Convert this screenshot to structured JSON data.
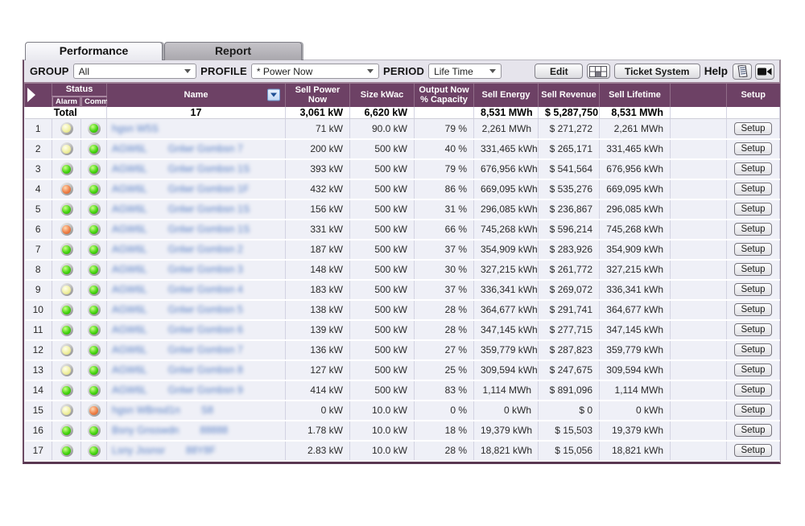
{
  "tabs": {
    "performance": "Performance",
    "report": "Report"
  },
  "toolbar": {
    "group_label": "GROUP",
    "group_value": "All",
    "profile_label": "PROFILE",
    "profile_value": "* Power Now",
    "period_label": "PERIOD",
    "period_value": "Life Time",
    "edit_button": "Edit",
    "grid_button_icon": "table-grid-icon",
    "ticket_button": "Ticket System",
    "help_label": "Help",
    "help_doc_icon": "document-icon",
    "help_video_icon": "video-camera-icon"
  },
  "table": {
    "headers": {
      "status": "Status",
      "alarm": "Alarm",
      "comm": "Comm.",
      "name": "Name",
      "sell_power": "Sell Power Now",
      "size": "Size kWac",
      "output": "Output Now % Capacity",
      "sell_energy": "Sell Energy",
      "sell_revenue": "Sell Revenue",
      "sell_lifetime": "Sell Lifetime",
      "blank": "",
      "setup": "Setup"
    },
    "setup_label": "Setup",
    "total": {
      "label": "Total",
      "count": "17",
      "sell_power": "3,061 kW",
      "size": "6,620 kW",
      "output": "",
      "sell_energy": "8,531 MWh",
      "sell_revenue": "$ 5,287,750",
      "sell_lifetime": "8,531 MWh"
    },
    "rows": [
      {
        "num": "1",
        "alarm": "yellow",
        "comm": "green",
        "name_redacted": [
          "hgsn W5S",
          ""
        ],
        "sell_power": "71 kW",
        "size": "90.0 kW",
        "output": "79 %",
        "sell_energy": "2,261 MWh",
        "sell_revenue": "$ 271,272",
        "sell_lifetime": "2,261 MWh"
      },
      {
        "num": "2",
        "alarm": "yellow",
        "comm": "green",
        "name_redacted": [
          "AGW6L",
          "Gnlwr Gsmbsn 7"
        ],
        "sell_power": "200 kW",
        "size": "500 kW",
        "output": "40 %",
        "sell_energy": "331,465 kWh",
        "sell_revenue": "$ 265,171",
        "sell_lifetime": "331,465 kWh"
      },
      {
        "num": "3",
        "alarm": "green",
        "comm": "green",
        "name_redacted": [
          "AGW6L",
          "Gnlwr Gsmbsn 1S"
        ],
        "sell_power": "393 kW",
        "size": "500 kW",
        "output": "79 %",
        "sell_energy": "676,956 kWh",
        "sell_revenue": "$ 541,564",
        "sell_lifetime": "676,956 kWh"
      },
      {
        "num": "4",
        "alarm": "orange",
        "comm": "green",
        "name_redacted": [
          "AGW6L",
          "Gnlwr Gsmbsn 1F"
        ],
        "sell_power": "432 kW",
        "size": "500 kW",
        "output": "86 %",
        "sell_energy": "669,095 kWh",
        "sell_revenue": "$ 535,276",
        "sell_lifetime": "669,095 kWh"
      },
      {
        "num": "5",
        "alarm": "green",
        "comm": "green",
        "name_redacted": [
          "AGW6L",
          "Gnlwr Gsmbsn 1S"
        ],
        "sell_power": "156 kW",
        "size": "500 kW",
        "output": "31 %",
        "sell_energy": "296,085 kWh",
        "sell_revenue": "$ 236,867",
        "sell_lifetime": "296,085 kWh"
      },
      {
        "num": "6",
        "alarm": "orange",
        "comm": "green",
        "name_redacted": [
          "AGW6L",
          "Gnlwr Gsmbsn 1S"
        ],
        "sell_power": "331 kW",
        "size": "500 kW",
        "output": "66 %",
        "sell_energy": "745,268 kWh",
        "sell_revenue": "$ 596,214",
        "sell_lifetime": "745,268 kWh"
      },
      {
        "num": "7",
        "alarm": "green",
        "comm": "green",
        "name_redacted": [
          "AGW6L",
          "Gnlwr Gsmbsn 2"
        ],
        "sell_power": "187 kW",
        "size": "500 kW",
        "output": "37 %",
        "sell_energy": "354,909 kWh",
        "sell_revenue": "$ 283,926",
        "sell_lifetime": "354,909 kWh"
      },
      {
        "num": "8",
        "alarm": "green",
        "comm": "green",
        "name_redacted": [
          "AGW6L",
          "Gnlwr Gsmbsn 3"
        ],
        "sell_power": "148 kW",
        "size": "500 kW",
        "output": "30 %",
        "sell_energy": "327,215 kWh",
        "sell_revenue": "$ 261,772",
        "sell_lifetime": "327,215 kWh"
      },
      {
        "num": "9",
        "alarm": "yellow",
        "comm": "green",
        "name_redacted": [
          "AGW6L",
          "Gnlwr Gsmbsn 4"
        ],
        "sell_power": "183 kW",
        "size": "500 kW",
        "output": "37 %",
        "sell_energy": "336,341 kWh",
        "sell_revenue": "$ 269,072",
        "sell_lifetime": "336,341 kWh"
      },
      {
        "num": "10",
        "alarm": "green",
        "comm": "green",
        "name_redacted": [
          "AGW6L",
          "Gnlwr Gsmbsn 5"
        ],
        "sell_power": "138 kW",
        "size": "500 kW",
        "output": "28 %",
        "sell_energy": "364,677 kWh",
        "sell_revenue": "$ 291,741",
        "sell_lifetime": "364,677 kWh"
      },
      {
        "num": "11",
        "alarm": "green",
        "comm": "green",
        "name_redacted": [
          "AGW6L",
          "Gnlwr Gsmbsn 6"
        ],
        "sell_power": "139 kW",
        "size": "500 kW",
        "output": "28 %",
        "sell_energy": "347,145 kWh",
        "sell_revenue": "$ 277,715",
        "sell_lifetime": "347,145 kWh"
      },
      {
        "num": "12",
        "alarm": "yellow",
        "comm": "green",
        "name_redacted": [
          "AGW6L",
          "Gnlwr Gsmbsn 7"
        ],
        "sell_power": "136 kW",
        "size": "500 kW",
        "output": "27 %",
        "sell_energy": "359,779 kWh",
        "sell_revenue": "$ 287,823",
        "sell_lifetime": "359,779 kWh"
      },
      {
        "num": "13",
        "alarm": "yellow",
        "comm": "green",
        "name_redacted": [
          "AGW6L",
          "Gnlwr Gsmbsn 8"
        ],
        "sell_power": "127 kW",
        "size": "500 kW",
        "output": "25 %",
        "sell_energy": "309,594 kWh",
        "sell_revenue": "$ 247,675",
        "sell_lifetime": "309,594 kWh"
      },
      {
        "num": "14",
        "alarm": "green",
        "comm": "green",
        "name_redacted": [
          "AGW6L",
          "Gnlwr Gsmbsn 9"
        ],
        "sell_power": "414 kW",
        "size": "500 kW",
        "output": "83 %",
        "sell_energy": "1,114 MWh",
        "sell_revenue": "$ 891,096",
        "sell_lifetime": "1,114 MWh"
      },
      {
        "num": "15",
        "alarm": "yellow",
        "comm": "orange",
        "name_redacted": [
          "hgsn WBnsd1n",
          "S8"
        ],
        "sell_power": "0 kW",
        "size": "10.0 kW",
        "output": "0 %",
        "sell_energy": "0 kWh",
        "sell_revenue": "$ 0",
        "sell_lifetime": "0 kWh"
      },
      {
        "num": "16",
        "alarm": "green",
        "comm": "green",
        "name_redacted": [
          "Bsny Gnsswdn",
          "88888"
        ],
        "sell_power": "1.78 kW",
        "size": "10.0 kW",
        "output": "18 %",
        "sell_energy": "19,379 kWh",
        "sell_revenue": "$ 15,503",
        "sell_lifetime": "19,379 kWh"
      },
      {
        "num": "17",
        "alarm": "green",
        "comm": "green",
        "name_redacted": [
          "Lsny Jssnsr",
          "88Y8F"
        ],
        "sell_power": "2.83 kW",
        "size": "10.0 kW",
        "output": "28 %",
        "sell_energy": "18,821 kWh",
        "sell_revenue": "$ 15,056",
        "sell_lifetime": "18,821 kWh"
      }
    ]
  },
  "colors": {
    "header_plum": "#6d4165",
    "window_border_bottom": "#5a3752",
    "row_background": "#eff0f7",
    "status_green": "#46d511",
    "status_yellow": "#f0f0a2",
    "status_orange": "#ee8048",
    "name_link": "#5b82c6"
  }
}
